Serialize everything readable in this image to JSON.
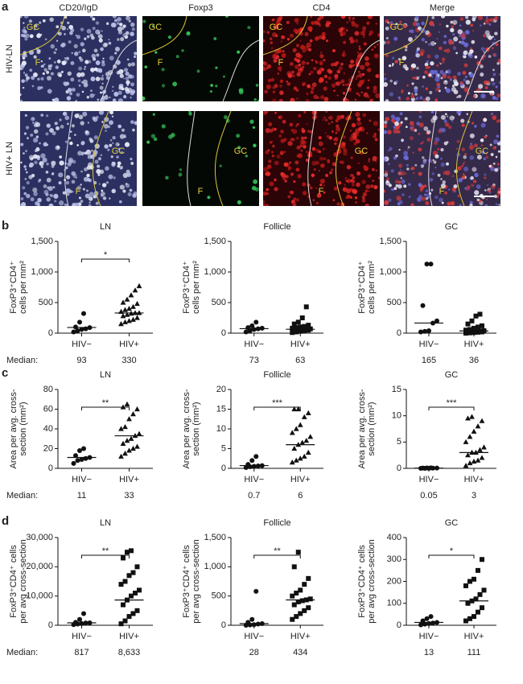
{
  "panel_labels": [
    "a",
    "b",
    "c",
    "d"
  ],
  "median_label": "Median:",
  "panel_a": {
    "columns": [
      "CD20/IgD",
      "Foxp3",
      "CD4",
      "Merge"
    ],
    "rows": [
      "HIV-LN",
      "HIV+ LN"
    ],
    "image_labels": [
      [
        [
          "GC",
          "F"
        ],
        [
          "GC",
          "F"
        ],
        [
          "GC",
          "F"
        ],
        [
          "GC",
          "F"
        ]
      ],
      [
        [
          "GC",
          "F"
        ],
        [
          "GC",
          "F"
        ],
        [
          "GC",
          "F"
        ],
        [
          "GC",
          "F"
        ]
      ]
    ]
  },
  "chart_data": [
    {
      "type": "scatter",
      "title": "LN",
      "ylabel": [
        "FoxP3⁺CD4⁺",
        "cells per mm²"
      ],
      "categories": [
        "HIV−",
        "HIV+"
      ],
      "markers": [
        "circle",
        "triangle"
      ],
      "color": "#111111",
      "groups": [
        [
          20,
          40,
          60,
          70,
          90,
          100,
          180,
          320
        ],
        [
          150,
          180,
          200,
          220,
          250,
          280,
          300,
          320,
          330,
          330,
          350,
          380,
          400,
          430,
          480,
          500,
          550,
          620,
          700,
          770
        ]
      ],
      "medians": [
        93,
        330
      ],
      "significance": "*",
      "ylim": [
        0,
        1500
      ],
      "yticks": [
        0,
        500,
        {
          "value": 1000,
          "label": "1,000"
        },
        {
          "value": 1500,
          "label": "1,500"
        }
      ]
    },
    {
      "type": "scatter",
      "title": "Follicle",
      "ylabel": [
        "FoxP3⁺CD4⁺",
        "cells per mm²"
      ],
      "categories": [
        "HIV−",
        "HIV+"
      ],
      "markers": [
        "circle",
        "square"
      ],
      "color": "#111111",
      "groups": [
        [
          20,
          40,
          60,
          70,
          80,
          90,
          120,
          180
        ],
        [
          10,
          20,
          30,
          40,
          50,
          55,
          60,
          63,
          65,
          70,
          80,
          90,
          100,
          110,
          130,
          150,
          180,
          250,
          430
        ]
      ],
      "medians": [
        73,
        63
      ],
      "ylim": [
        0,
        1500
      ],
      "yticks": [
        0,
        500,
        {
          "value": 1000,
          "label": "1,000"
        },
        {
          "value": 1500,
          "label": "1,500"
        }
      ]
    },
    {
      "type": "scatter",
      "title": "GC",
      "ylabel": [
        "FoxP3⁺CD4⁺",
        "cells per mm²"
      ],
      "categories": [
        "HIV−",
        "HIV+"
      ],
      "markers": [
        "circle",
        "square"
      ],
      "color": "#111111",
      "groups": [
        [
          20,
          30,
          40,
          165,
          200,
          450,
          1130,
          1130
        ],
        [
          0,
          5,
          10,
          15,
          20,
          25,
          30,
          35,
          36,
          40,
          50,
          60,
          80,
          100,
          120,
          150,
          200,
          280,
          310
        ]
      ],
      "medians": [
        165,
        36
      ],
      "ylim": [
        0,
        1500
      ],
      "yticks": [
        0,
        500,
        {
          "value": 1000,
          "label": "1,000"
        },
        {
          "value": 1500,
          "label": "1,500"
        }
      ]
    },
    {
      "type": "scatter",
      "title": "LN",
      "ylabel": [
        "Area per avg. cross-",
        "section (mm²)"
      ],
      "categories": [
        "HIV−",
        "HIV+"
      ],
      "markers": [
        "circle",
        "triangle"
      ],
      "color": "#111111",
      "groups": [
        [
          5,
          8,
          9,
          10,
          11,
          13,
          18,
          20
        ],
        [
          12,
          15,
          18,
          20,
          22,
          25,
          28,
          30,
          33,
          35,
          40,
          42,
          50,
          55,
          60,
          62,
          65
        ]
      ],
      "medians": [
        11,
        33
      ],
      "significance": "**",
      "ylim": [
        0,
        80
      ],
      "yticks": [
        0,
        20,
        40,
        60,
        80
      ]
    },
    {
      "type": "scatter",
      "title": "Follicle",
      "ylabel": [
        "Area per avg. cross-",
        "section (mm²)"
      ],
      "categories": [
        "HIV−",
        "HIV+"
      ],
      "markers": [
        "circle",
        "triangle"
      ],
      "color": "#111111",
      "groups": [
        [
          0.2,
          0.4,
          0.5,
          0.6,
          0.7,
          1,
          2,
          3
        ],
        [
          1.5,
          2,
          2.5,
          3,
          4,
          5,
          6,
          6.5,
          7,
          8,
          9,
          10,
          11,
          13,
          14,
          15,
          15
        ]
      ],
      "medians": [
        0.7,
        6
      ],
      "significance": "***",
      "ylim": [
        0,
        20
      ],
      "yticks": [
        0,
        5,
        10,
        15,
        20
      ]
    },
    {
      "type": "scatter",
      "title": "GC",
      "ylabel": [
        "Area per avg. cross-",
        "section (mm²)"
      ],
      "categories": [
        "HIV−",
        "HIV+"
      ],
      "markers": [
        "circle",
        "triangle"
      ],
      "color": "#111111",
      "groups": [
        [
          0,
          0,
          0.02,
          0.04,
          0.05,
          0.06,
          0.08,
          0.1
        ],
        [
          0.5,
          1,
          1.3,
          1.5,
          2,
          2.5,
          3,
          3,
          3.5,
          4,
          5,
          6,
          7,
          8,
          9,
          9.5,
          9.8
        ]
      ],
      "medians": [
        0.05,
        3
      ],
      "significance": "***",
      "ylim": [
        0,
        15
      ],
      "yticks": [
        0,
        5,
        10,
        15
      ]
    },
    {
      "type": "scatter",
      "title": "LN",
      "ylabel": [
        "FoxP3⁺CD4⁺ cells",
        "per avg cross-section"
      ],
      "categories": [
        "HIV−",
        "HIV+"
      ],
      "markers": [
        "circle",
        "square"
      ],
      "color": "#111111",
      "groups": [
        [
          200,
          400,
          600,
          800,
          817,
          1000,
          2000,
          4000
        ],
        [
          500,
          1500,
          3000,
          4000,
          5000,
          7000,
          8633,
          10000,
          11000,
          12000,
          14000,
          15000,
          17000,
          18000,
          20000,
          23000,
          25000,
          25500
        ]
      ],
      "medians": [
        817,
        8633
      ],
      "median_labels": [
        "817",
        "8,633"
      ],
      "significance": "**",
      "ylim": [
        0,
        30000
      ],
      "yticks": [
        0,
        {
          "value": 10000,
          "label": "10,000"
        },
        {
          "value": 20000,
          "label": "20,000"
        },
        {
          "value": 30000,
          "label": "30,000"
        }
      ]
    },
    {
      "type": "scatter",
      "title": "Follicle",
      "ylabel": [
        "FoxP3⁺CD4⁺ cells",
        "per avg cross-section"
      ],
      "categories": [
        "HIV−",
        "HIV+"
      ],
      "markers": [
        "circle",
        "square"
      ],
      "color": "#111111",
      "groups": [
        [
          0,
          5,
          10,
          20,
          28,
          50,
          100,
          580
        ],
        [
          100,
          150,
          200,
          250,
          300,
          350,
          400,
          420,
          434,
          450,
          500,
          550,
          600,
          700,
          800,
          1000,
          1250
        ]
      ],
      "medians": [
        28,
        434
      ],
      "significance": "**",
      "ylim": [
        0,
        1500
      ],
      "yticks": [
        0,
        500,
        {
          "value": 1000,
          "label": "1,000"
        },
        {
          "value": 1500,
          "label": "1,500"
        }
      ]
    },
    {
      "type": "scatter",
      "title": "GC",
      "ylabel": [
        "FoxP3⁺CD4⁺ cells",
        "per avg cross-section"
      ],
      "categories": [
        "HIV−",
        "HIV+"
      ],
      "markers": [
        "circle",
        "square"
      ],
      "color": "#111111",
      "groups": [
        [
          2,
          5,
          8,
          10,
          13,
          20,
          30,
          40
        ],
        [
          20,
          30,
          40,
          60,
          80,
          100,
          111,
          120,
          140,
          160,
          180,
          200,
          210,
          250,
          300
        ]
      ],
      "medians": [
        13,
        111
      ],
      "significance": "*",
      "ylim": [
        0,
        400
      ],
      "yticks": [
        0,
        100,
        200,
        300,
        400
      ]
    }
  ]
}
